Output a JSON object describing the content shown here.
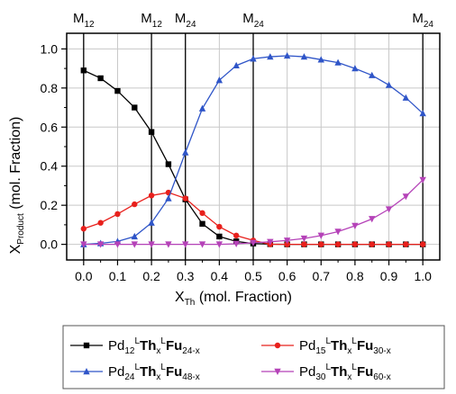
{
  "chart_data": {
    "type": "line",
    "x": [
      0.0,
      0.05,
      0.1,
      0.15,
      0.2,
      0.25,
      0.3,
      0.35,
      0.4,
      0.45,
      0.5,
      0.55,
      0.6,
      0.65,
      0.7,
      0.75,
      0.8,
      0.85,
      0.9,
      0.95,
      1.0
    ],
    "series": [
      {
        "key": "s1",
        "color": "#000000",
        "marker": "square",
        "values": [
          0.89,
          0.85,
          0.785,
          0.7,
          0.575,
          0.41,
          0.23,
          0.105,
          0.04,
          0.015,
          0.004,
          0.001,
          0.0,
          0.0,
          0.0,
          0.0,
          0.0,
          0.0,
          0.0,
          0.0,
          0.0
        ]
      },
      {
        "key": "s2",
        "color": "#e8201c",
        "marker": "circle",
        "values": [
          0.08,
          0.11,
          0.155,
          0.205,
          0.25,
          0.265,
          0.235,
          0.16,
          0.09,
          0.045,
          0.02,
          0.0,
          0.0,
          0.0,
          0.0,
          0.0,
          0.0,
          0.0,
          0.0,
          0.0,
          0.0
        ]
      },
      {
        "key": "s3",
        "color": "#2f55c8",
        "marker": "triangle-up",
        "values": [
          0.0,
          0.005,
          0.015,
          0.04,
          0.11,
          0.235,
          0.47,
          0.695,
          0.84,
          0.915,
          0.95,
          0.96,
          0.965,
          0.96,
          0.945,
          0.93,
          0.9,
          0.865,
          0.815,
          0.75,
          0.67
        ]
      },
      {
        "key": "s4",
        "color": "#b542b8",
        "marker": "triangle-down",
        "values": [
          0.0,
          0.0,
          0.0,
          0.0,
          0.0,
          0.0,
          0.0,
          0.0,
          0.0,
          0.003,
          0.008,
          0.013,
          0.02,
          0.03,
          0.045,
          0.065,
          0.095,
          0.13,
          0.18,
          0.245,
          0.33
        ]
      }
    ],
    "xlim": [
      -0.05,
      1.05
    ],
    "ylim": [
      -0.08,
      1.08
    ],
    "xticks": [
      "0.0",
      "0.1",
      "0.2",
      "0.3",
      "0.4",
      "0.5",
      "0.6",
      "0.7",
      "0.8",
      "0.9",
      "1.0"
    ],
    "yticks": [
      "0.0",
      "0.2",
      "0.4",
      "0.6",
      "0.8",
      "1.0"
    ],
    "xlabel": {
      "main": "X",
      "sub": "Th",
      "rest": " (mol. Fraction)"
    },
    "ylabel": {
      "main": "X",
      "sub": "Product",
      "rest": " (mol. Fraction)"
    },
    "vertical_lines": [
      {
        "x": 0.0,
        "main": "M",
        "sub": "12"
      },
      {
        "x": 0.2,
        "main": "M",
        "sub": "12"
      },
      {
        "x": 0.3,
        "main": "M",
        "sub": "24"
      },
      {
        "x": 0.5,
        "main": "M",
        "sub": "24"
      },
      {
        "x": 1.0,
        "main": "M",
        "sub": "24"
      }
    ],
    "grid": true,
    "legend_position": "bottom",
    "legend": [
      {
        "series": "s1",
        "pd": "Pd",
        "pd_sub": "12",
        "sup1": "L",
        "th": "Th",
        "th_sub": "x",
        "sup2": "L",
        "fu": "Fu",
        "fu_sub": "24-x"
      },
      {
        "series": "s2",
        "pd": "Pd",
        "pd_sub": "15",
        "sup1": "L",
        "th": "Th",
        "th_sub": "x",
        "sup2": "L",
        "fu": "Fu",
        "fu_sub": "30-x"
      },
      {
        "series": "s3",
        "pd": "Pd",
        "pd_sub": "24",
        "sup1": "L",
        "th": "Th",
        "th_sub": "x",
        "sup2": "L",
        "fu": "Fu",
        "fu_sub": "48-x"
      },
      {
        "series": "s4",
        "pd": "Pd",
        "pd_sub": "30",
        "sup1": "L",
        "th": "Th",
        "th_sub": "x",
        "sup2": "L",
        "fu": "Fu",
        "fu_sub": "60-x"
      }
    ]
  }
}
